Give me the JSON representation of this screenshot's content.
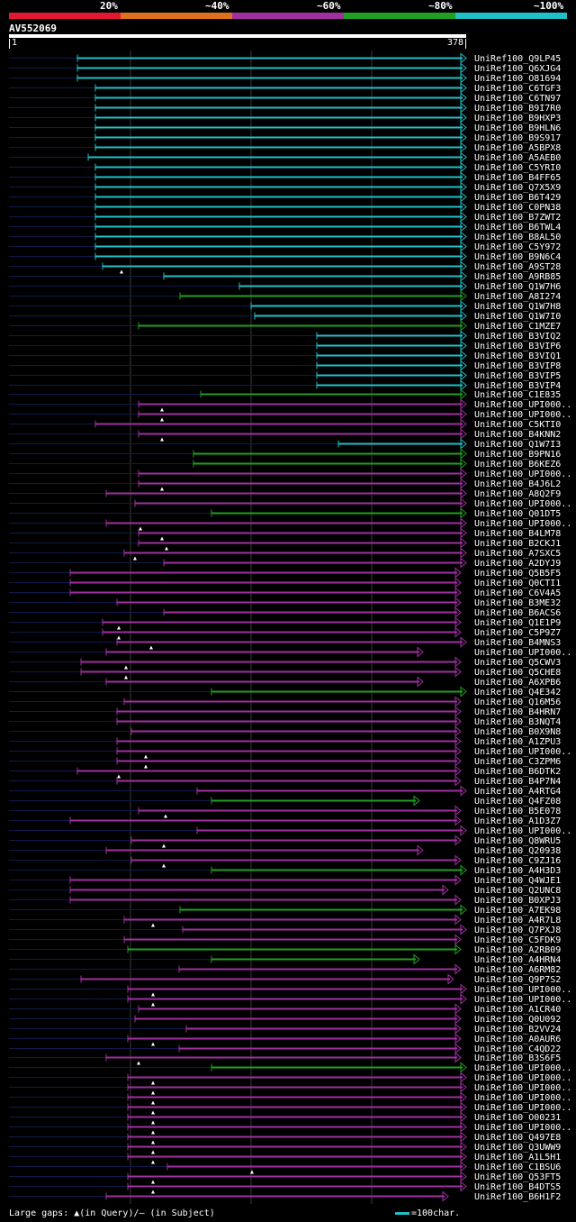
{
  "legend": [
    {
      "label": "20%",
      "color": "#e01830"
    },
    {
      "label": "~40%",
      "color": "#e07020"
    },
    {
      "label": "~60%",
      "color": "#a030a0"
    },
    {
      "label": "~80%",
      "color": "#20a020"
    },
    {
      "label": "~100%",
      "color": "#20c0c8"
    }
  ],
  "query": {
    "title": "AV552069",
    "start": "1",
    "end": "378"
  },
  "footer": {
    "large_gaps": "Large gaps: ▲(in Query)/– (in Subject)",
    "scale": "=100char."
  },
  "colors": {
    "c": "#20c0c8",
    "g": "#20a020",
    "m": "#a030a0",
    "dim": "#101a4a",
    "grid": "#3a3a3a"
  },
  "hits": [
    {
      "label": "UniRef100_Q9LP45",
      "start": 86,
      "end": 518,
      "color": "c",
      "tri": 0
    },
    {
      "label": "UniRef100_Q6XJG4",
      "start": 86,
      "end": 518,
      "color": "c",
      "tri": 0
    },
    {
      "label": "UniRef100_O81694",
      "start": 86,
      "end": 518,
      "color": "c",
      "tri": 0
    },
    {
      "label": "UniRef100_C6TGF3",
      "start": 106,
      "end": 518,
      "color": "c",
      "tri": 0
    },
    {
      "label": "UniRef100_C6TN97",
      "start": 106,
      "end": 518,
      "color": "c",
      "tri": 0
    },
    {
      "label": "UniRef100_B9I7R0",
      "start": 106,
      "end": 518,
      "color": "c",
      "tri": 0
    },
    {
      "label": "UniRef100_B9HXP3",
      "start": 106,
      "end": 518,
      "color": "c",
      "tri": 0
    },
    {
      "label": "UniRef100_B9HLN6",
      "start": 106,
      "end": 518,
      "color": "c",
      "tri": 0
    },
    {
      "label": "UniRef100_B9S917",
      "start": 106,
      "end": 518,
      "color": "c",
      "tri": 0
    },
    {
      "label": "UniRef100_A5BPX8",
      "start": 106,
      "end": 518,
      "color": "c",
      "tri": 0
    },
    {
      "label": "UniRef100_A5AEB0",
      "start": 98,
      "end": 518,
      "color": "c",
      "tri": 0
    },
    {
      "label": "UniRef100_C5YRI0",
      "start": 106,
      "end": 518,
      "color": "c",
      "tri": 0
    },
    {
      "label": "UniRef100_B4FF65",
      "start": 106,
      "end": 518,
      "color": "c",
      "tri": 0
    },
    {
      "label": "UniRef100_Q7X5X9",
      "start": 106,
      "end": 518,
      "color": "c",
      "tri": 0
    },
    {
      "label": "UniRef100_B6T429",
      "start": 106,
      "end": 518,
      "color": "c",
      "tri": 0
    },
    {
      "label": "UniRef100_C0PN38",
      "start": 106,
      "end": 518,
      "color": "c",
      "tri": 0
    },
    {
      "label": "UniRef100_B7ZWT2",
      "start": 106,
      "end": 518,
      "color": "c",
      "tri": 0
    },
    {
      "label": "UniRef100_B6TWL4",
      "start": 106,
      "end": 518,
      "color": "c",
      "tri": 0
    },
    {
      "label": "UniRef100_B8AL50",
      "start": 106,
      "end": 518,
      "color": "c",
      "tri": 0
    },
    {
      "label": "UniRef100_C5Y972",
      "start": 106,
      "end": 518,
      "color": "c",
      "tri": 0
    },
    {
      "label": "UniRef100_B9N6C4",
      "start": 106,
      "end": 518,
      "color": "c",
      "tri": 0
    },
    {
      "label": "UniRef100_A9ST28",
      "start": 114,
      "end": 518,
      "color": "c",
      "tri": 135
    },
    {
      "label": "UniRef100_A9RB85",
      "start": 182,
      "end": 518,
      "color": "c",
      "tri": 0
    },
    {
      "label": "UniRef100_Q1W7H6",
      "start": 266,
      "end": 518,
      "color": "c",
      "tri": 0
    },
    {
      "label": "UniRef100_A8I274",
      "start": 200,
      "end": 518,
      "color": "g",
      "tri": 0
    },
    {
      "label": "UniRef100_Q1W7H8",
      "start": 279,
      "end": 518,
      "color": "c",
      "tri": 0
    },
    {
      "label": "UniRef100_Q1W7I0",
      "start": 283,
      "end": 518,
      "color": "c",
      "tri": 0
    },
    {
      "label": "UniRef100_C1MZE7",
      "start": 154,
      "end": 518,
      "color": "g",
      "tri": 0
    },
    {
      "label": "UniRef100_B3VIQ2",
      "start": 352,
      "end": 518,
      "color": "c",
      "tri": 0
    },
    {
      "label": "UniRef100_B3VIP6",
      "start": 352,
      "end": 518,
      "color": "c",
      "tri": 0
    },
    {
      "label": "UniRef100_B3VIQ1",
      "start": 352,
      "end": 518,
      "color": "c",
      "tri": 0
    },
    {
      "label": "UniRef100_B3VIP8",
      "start": 352,
      "end": 518,
      "color": "c",
      "tri": 0
    },
    {
      "label": "UniRef100_B3VIP5",
      "start": 352,
      "end": 518,
      "color": "c",
      "tri": 0
    },
    {
      "label": "UniRef100_B3VIP4",
      "start": 352,
      "end": 518,
      "color": "c",
      "tri": 0
    },
    {
      "label": "UniRef100_C1E835",
      "start": 223,
      "end": 518,
      "color": "g",
      "tri": 0
    },
    {
      "label": "UniRef100_UPI000..",
      "start": 154,
      "end": 518,
      "color": "m",
      "tri": 180
    },
    {
      "label": "UniRef100_UPI000..",
      "start": 154,
      "end": 518,
      "color": "m",
      "tri": 180
    },
    {
      "label": "UniRef100_C5KTI0",
      "start": 106,
      "end": 518,
      "color": "m",
      "tri": 0
    },
    {
      "label": "UniRef100_B4KNN2",
      "start": 154,
      "end": 518,
      "color": "m",
      "tri": 180
    },
    {
      "label": "UniRef100_Q1W7I3",
      "start": 376,
      "end": 518,
      "color": "c",
      "tri": 0
    },
    {
      "label": "UniRef100_B9PN16",
      "start": 215,
      "end": 518,
      "color": "g",
      "tri": 0
    },
    {
      "label": "UniRef100_B6KEZ6",
      "start": 215,
      "end": 518,
      "color": "g",
      "tri": 0
    },
    {
      "label": "UniRef100_UPI000..",
      "start": 154,
      "end": 518,
      "color": "m",
      "tri": 0
    },
    {
      "label": "UniRef100_B4J6L2",
      "start": 154,
      "end": 518,
      "color": "m",
      "tri": 180
    },
    {
      "label": "UniRef100_A8Q2F9",
      "start": 118,
      "end": 518,
      "color": "m",
      "tri": 0
    },
    {
      "label": "UniRef100_UPI000..",
      "start": 150,
      "end": 518,
      "color": "m",
      "tri": 0
    },
    {
      "label": "UniRef100_Q01DT5",
      "start": 235,
      "end": 518,
      "color": "g",
      "tri": 0
    },
    {
      "label": "UniRef100_UPI000..",
      "start": 118,
      "end": 518,
      "color": "m",
      "tri": 156
    },
    {
      "label": "UniRef100_B4LM78",
      "start": 154,
      "end": 518,
      "color": "m",
      "tri": 180
    },
    {
      "label": "UniRef100_B2CKJ1",
      "start": 154,
      "end": 518,
      "color": "m",
      "tri": 185
    },
    {
      "label": "UniRef100_A7SXC5",
      "start": 138,
      "end": 518,
      "color": "m",
      "tri": 150
    },
    {
      "label": "UniRef100_A2DYJ9",
      "start": 182,
      "end": 518,
      "color": "m",
      "tri": 0
    },
    {
      "label": "UniRef100_Q5B5F5",
      "start": 78,
      "end": 512,
      "color": "m",
      "tri": 0
    },
    {
      "label": "UniRef100_Q0CTI1",
      "start": 78,
      "end": 512,
      "color": "m",
      "tri": 0
    },
    {
      "label": "UniRef100_C6V4A5",
      "start": 78,
      "end": 512,
      "color": "m",
      "tri": 0
    },
    {
      "label": "UniRef100_B3ME32",
      "start": 130,
      "end": 512,
      "color": "m",
      "tri": 0
    },
    {
      "label": "UniRef100_B6ACS6",
      "start": 182,
      "end": 512,
      "color": "m",
      "tri": 0
    },
    {
      "label": "UniRef100_Q1E1P9",
      "start": 114,
      "end": 512,
      "color": "m",
      "tri": 132
    },
    {
      "label": "UniRef100_C5P9Z7",
      "start": 114,
      "end": 512,
      "color": "m",
      "tri": 132
    },
    {
      "label": "UniRef100_B4MNS3",
      "start": 130,
      "end": 518,
      "color": "m",
      "tri": 168
    },
    {
      "label": "UniRef100_UPI000..",
      "start": 118,
      "end": 470,
      "color": "m",
      "tri": 0
    },
    {
      "label": "UniRef100_Q5CWV3",
      "start": 90,
      "end": 512,
      "color": "m",
      "tri": 140
    },
    {
      "label": "UniRef100_Q5CHE8",
      "start": 90,
      "end": 512,
      "color": "m",
      "tri": 140
    },
    {
      "label": "UniRef100_A6XPB6",
      "start": 118,
      "end": 470,
      "color": "m",
      "tri": 0
    },
    {
      "label": "UniRef100_Q4E342",
      "start": 235,
      "end": 518,
      "color": "g",
      "tri": 0
    },
    {
      "label": "UniRef100_Q16M56",
      "start": 138,
      "end": 512,
      "color": "m",
      "tri": 0
    },
    {
      "label": "UniRef100_B4HRN7",
      "start": 130,
      "end": 512,
      "color": "m",
      "tri": 0
    },
    {
      "label": "UniRef100_B3NQT4",
      "start": 130,
      "end": 512,
      "color": "m",
      "tri": 0
    },
    {
      "label": "UniRef100_B0X9N8",
      "start": 146,
      "end": 512,
      "color": "m",
      "tri": 0
    },
    {
      "label": "UniRef100_A1ZPU3",
      "start": 130,
      "end": 512,
      "color": "m",
      "tri": 0
    },
    {
      "label": "UniRef100_UPI000..",
      "start": 130,
      "end": 512,
      "color": "m",
      "tri": 162
    },
    {
      "label": "UniRef100_C3ZPM6",
      "start": 130,
      "end": 512,
      "color": "m",
      "tri": 162
    },
    {
      "label": "UniRef100_B6DTK2",
      "start": 86,
      "end": 512,
      "color": "m",
      "tri": 132
    },
    {
      "label": "UniRef100_B4P7N4",
      "start": 130,
      "end": 512,
      "color": "m",
      "tri": 0
    },
    {
      "label": "UniRef100_A4RTG4",
      "start": 219,
      "end": 518,
      "color": "m",
      "tri": 0
    },
    {
      "label": "UniRef100_Q4FZ08",
      "start": 235,
      "end": 466,
      "color": "g",
      "tri": 0
    },
    {
      "label": "UniRef100_B5E078",
      "start": 154,
      "end": 512,
      "color": "m",
      "tri": 184
    },
    {
      "label": "UniRef100_A1D3Z7",
      "start": 78,
      "end": 512,
      "color": "m",
      "tri": 0
    },
    {
      "label": "UniRef100_UPI000..",
      "start": 219,
      "end": 518,
      "color": "m",
      "tri": 0
    },
    {
      "label": "UniRef100_Q8WRU5",
      "start": 146,
      "end": 512,
      "color": "m",
      "tri": 182
    },
    {
      "label": "UniRef100_Q20938",
      "start": 118,
      "end": 470,
      "color": "m",
      "tri": 0
    },
    {
      "label": "UniRef100_C9ZJ16",
      "start": 146,
      "end": 512,
      "color": "m",
      "tri": 182
    },
    {
      "label": "UniRef100_A4H3D3",
      "start": 235,
      "end": 518,
      "color": "g",
      "tri": 0
    },
    {
      "label": "UniRef100_Q4WJE1",
      "start": 78,
      "end": 512,
      "color": "m",
      "tri": 0
    },
    {
      "label": "UniRef100_Q2UNC8",
      "start": 78,
      "end": 498,
      "color": "m",
      "tri": 0
    },
    {
      "label": "UniRef100_B0XPJ3",
      "start": 78,
      "end": 512,
      "color": "m",
      "tri": 0
    },
    {
      "label": "UniRef100_A7EK98",
      "start": 200,
      "end": 518,
      "color": "g",
      "tri": 0
    },
    {
      "label": "UniRef100_A4R7L8",
      "start": 138,
      "end": 512,
      "color": "m",
      "tri": 170
    },
    {
      "label": "UniRef100_Q7PXJ8",
      "start": 203,
      "end": 518,
      "color": "m",
      "tri": 0
    },
    {
      "label": "UniRef100_C5FDK9",
      "start": 138,
      "end": 512,
      "color": "m",
      "tri": 0
    },
    {
      "label": "UniRef100_A2RB09",
      "start": 142,
      "end": 512,
      "color": "g",
      "tri": 0
    },
    {
      "label": "UniRef100_A4HRN4",
      "start": 235,
      "end": 466,
      "color": "g",
      "tri": 0
    },
    {
      "label": "UniRef100_A6RM82",
      "start": 199,
      "end": 512,
      "color": "m",
      "tri": 0
    },
    {
      "label": "UniRef100_Q9P7S2",
      "start": 90,
      "end": 504,
      "color": "m",
      "tri": 0
    },
    {
      "label": "UniRef100_UPI000..",
      "start": 142,
      "end": 518,
      "color": "m",
      "tri": 170
    },
    {
      "label": "UniRef100_UPI000..",
      "start": 142,
      "end": 518,
      "color": "m",
      "tri": 170
    },
    {
      "label": "UniRef100_A1CR40",
      "start": 154,
      "end": 512,
      "color": "m",
      "tri": 0
    },
    {
      "label": "UniRef100_Q0U092",
      "start": 150,
      "end": 512,
      "color": "m",
      "tri": 0
    },
    {
      "label": "UniRef100_B2VV24",
      "start": 207,
      "end": 512,
      "color": "m",
      "tri": 0
    },
    {
      "label": "UniRef100_A0AUR6",
      "start": 142,
      "end": 512,
      "color": "m",
      "tri": 170
    },
    {
      "label": "UniRef100_C4QD22",
      "start": 199,
      "end": 512,
      "color": "m",
      "tri": 0
    },
    {
      "label": "UniRef100_B3S6F5",
      "start": 118,
      "end": 512,
      "color": "m",
      "tri": 154
    },
    {
      "label": "UniRef100_UPI000..",
      "start": 235,
      "end": 518,
      "color": "g",
      "tri": 0
    },
    {
      "label": "UniRef100_UPI000..",
      "start": 142,
      "end": 518,
      "color": "m",
      "tri": 170
    },
    {
      "label": "UniRef100_UPI000..",
      "start": 142,
      "end": 518,
      "color": "m",
      "tri": 170
    },
    {
      "label": "UniRef100_UPI000..",
      "start": 142,
      "end": 518,
      "color": "m",
      "tri": 170
    },
    {
      "label": "UniRef100_UPI000..",
      "start": 142,
      "end": 518,
      "color": "m",
      "tri": 170
    },
    {
      "label": "UniRef100_O00231",
      "start": 142,
      "end": 518,
      "color": "m",
      "tri": 170
    },
    {
      "label": "UniRef100_UPI000..",
      "start": 142,
      "end": 518,
      "color": "m",
      "tri": 170
    },
    {
      "label": "UniRef100_Q497E8",
      "start": 142,
      "end": 518,
      "color": "m",
      "tri": 170
    },
    {
      "label": "UniRef100_Q3UWW9",
      "start": 142,
      "end": 518,
      "color": "m",
      "tri": 170
    },
    {
      "label": "UniRef100_A1L5H1",
      "start": 142,
      "end": 518,
      "color": "m",
      "tri": 170
    },
    {
      "label": "UniRef100_C1BSU6",
      "start": 186,
      "end": 518,
      "color": "m",
      "tri": 280
    },
    {
      "label": "UniRef100_Q53FT5",
      "start": 142,
      "end": 518,
      "color": "m",
      "tri": 170
    },
    {
      "label": "UniRef100_B4DTS5",
      "start": 142,
      "end": 518,
      "color": "m",
      "tri": 170
    },
    {
      "label": "UniRef100_B6H1F2",
      "start": 118,
      "end": 498,
      "color": "m",
      "tri": 0
    }
  ]
}
